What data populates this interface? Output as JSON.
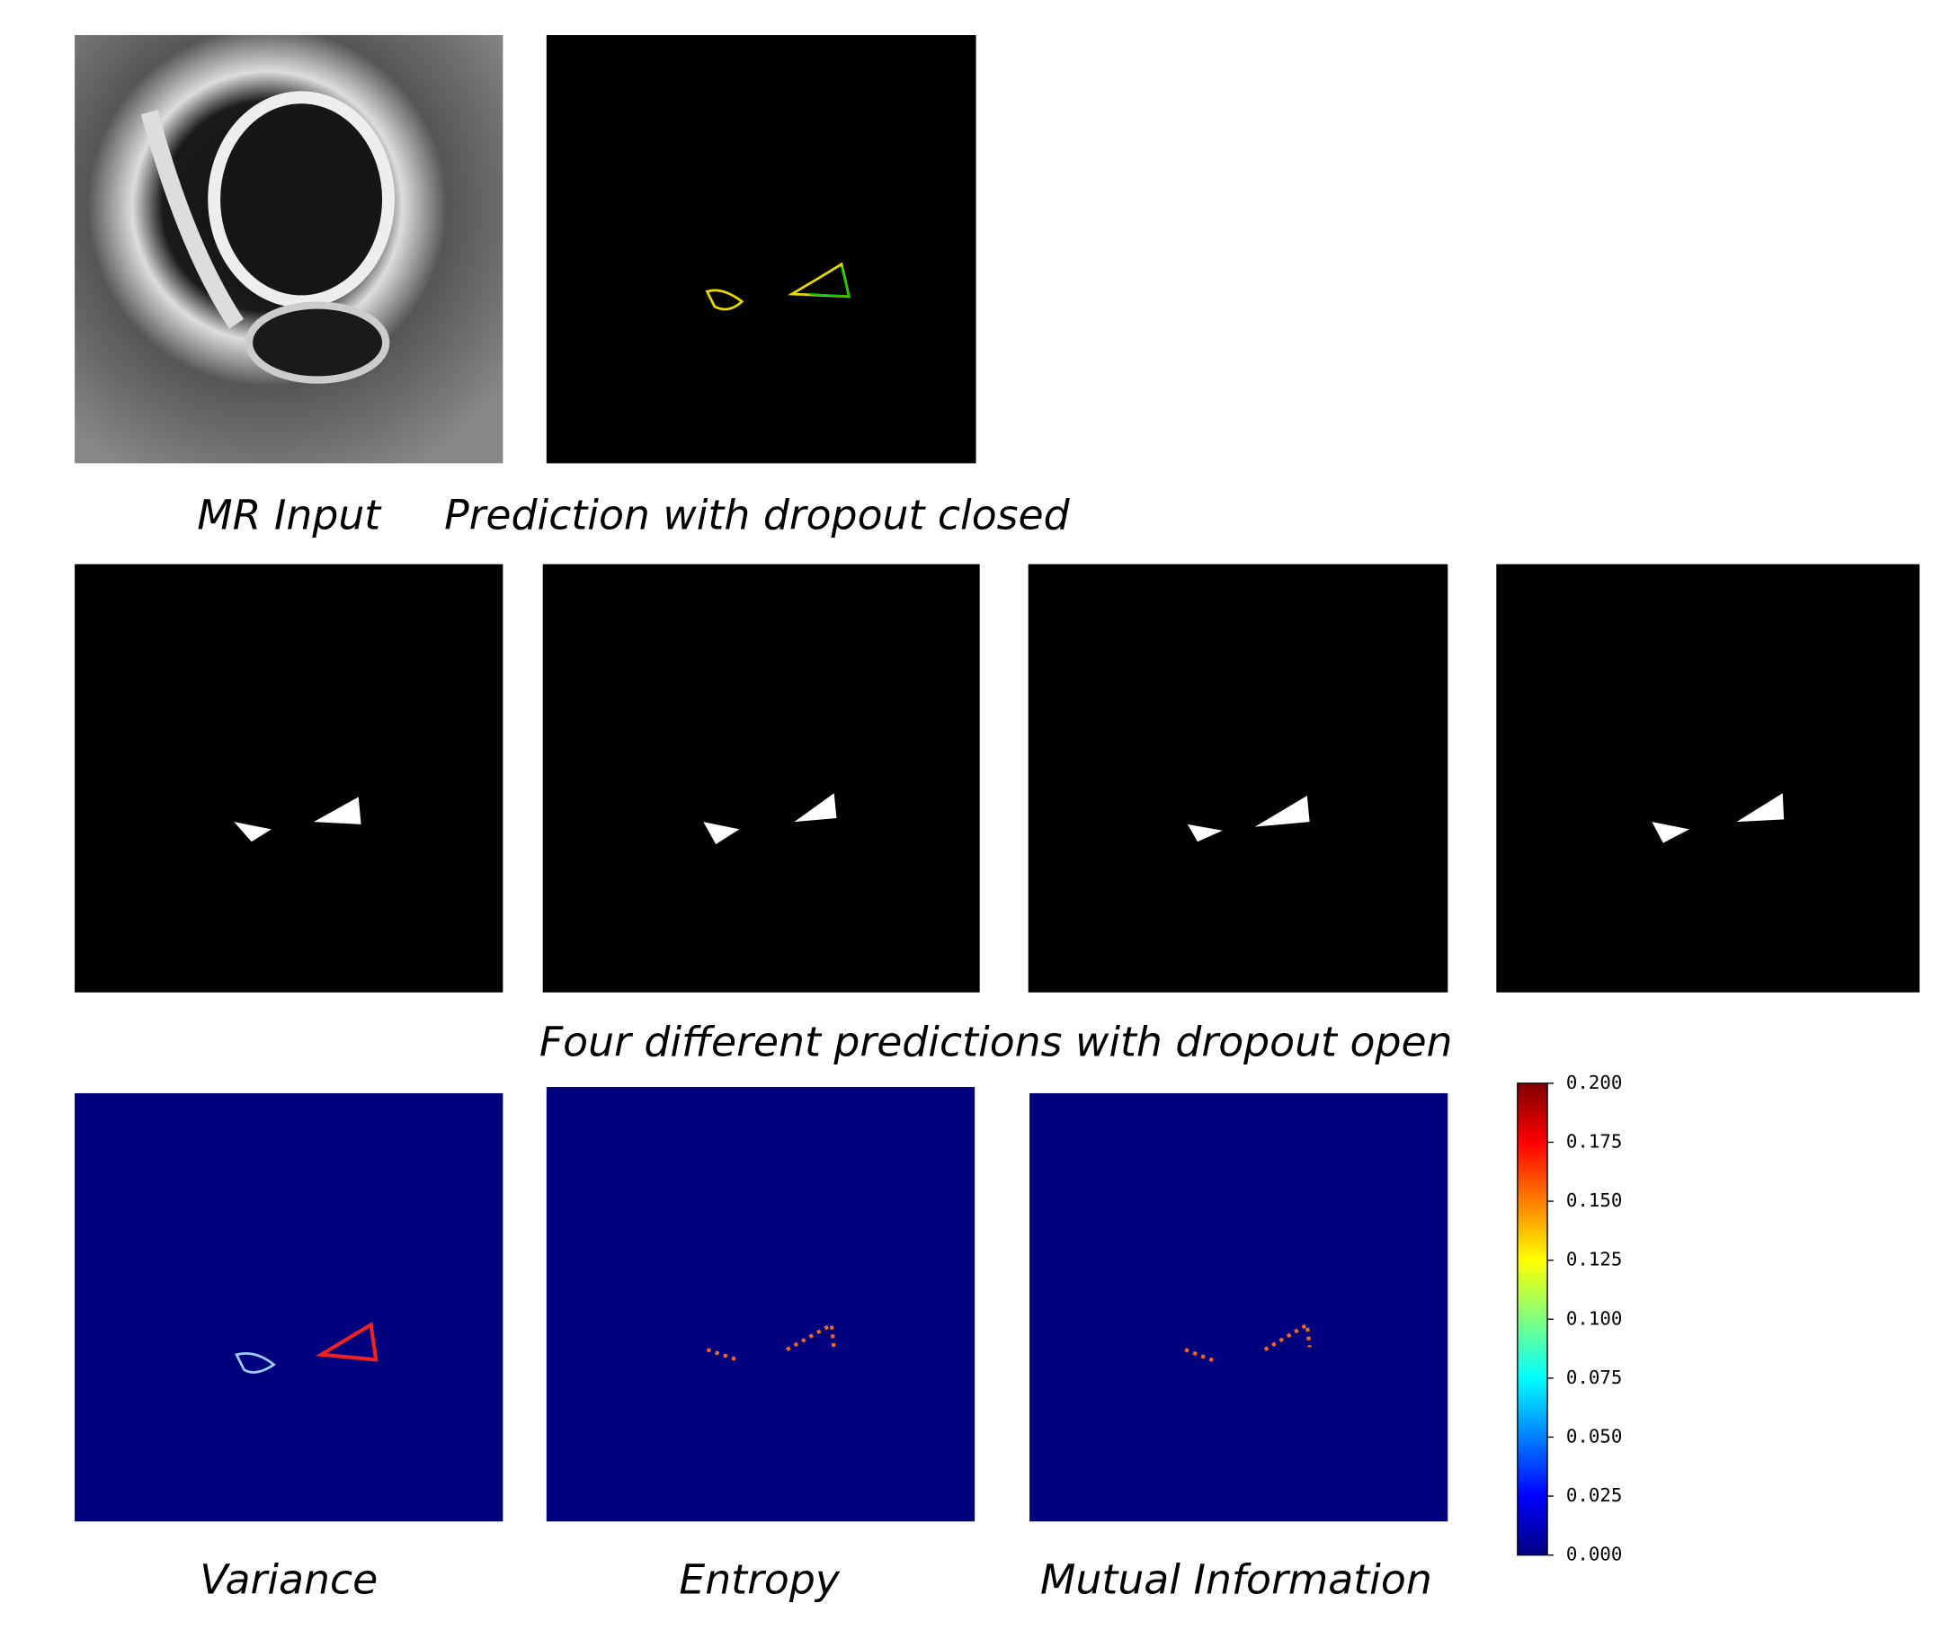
{
  "panels": [
    {
      "label": "MR Input"
    },
    {
      "label": "Prediction with dropout closed"
    },
    {
      "label": "Four different predictions with dropout open"
    },
    {
      "label": "Variance"
    },
    {
      "label": "Entropy"
    },
    {
      "label": "Mutual Information"
    }
  ],
  "colorbar": {
    "lim": [
      0,
      0.2
    ],
    "ticks": [
      {
        "value": 0,
        "label": "0.000"
      },
      {
        "value": 0.025,
        "label": "0.025"
      },
      {
        "value": 0.05,
        "label": "0.050"
      },
      {
        "value": 0.075,
        "label": "0.075"
      },
      {
        "value": 0.1,
        "label": "0.100"
      },
      {
        "value": 0.125,
        "label": "0.125"
      },
      {
        "value": 0.15,
        "label": "0.150"
      },
      {
        "value": 0.175,
        "label": "0.175"
      },
      {
        "value": 0.2,
        "label": "0.200"
      }
    ]
  }
}
